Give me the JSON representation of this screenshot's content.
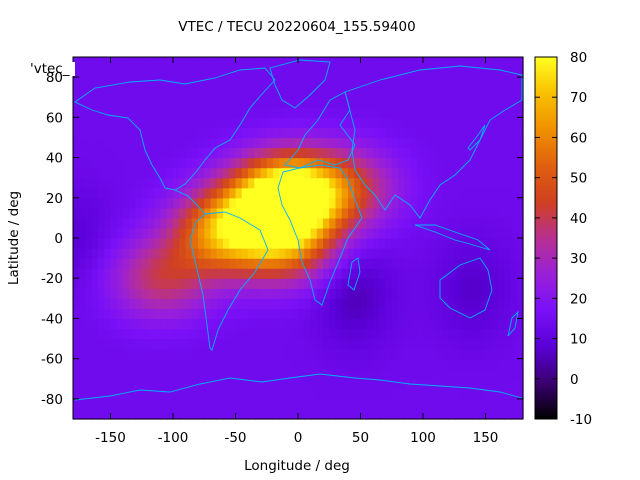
{
  "chart_data": {
    "type": "heatmap",
    "title": "VTEC / TECU 20220604_155.59400",
    "xlabel": "Longitude / deg",
    "ylabel": "Latitude / deg",
    "legend_label": "'vtec_",
    "xlim": [
      -180,
      180
    ],
    "ylim": [
      -90,
      90
    ],
    "xticks": [
      -150,
      -100,
      -50,
      0,
      50,
      100,
      150
    ],
    "yticks": [
      -80,
      -60,
      -40,
      -20,
      0,
      20,
      40,
      60,
      80
    ],
    "colorbar": {
      "range": [
        -10,
        80
      ],
      "ticks": [
        -10,
        0,
        10,
        20,
        30,
        40,
        50,
        60,
        70,
        80
      ],
      "palette": [
        "#000000",
        "#3a0070",
        "#5a00d6",
        "#7a10f8",
        "#9a20d8",
        "#b83090",
        "#d04020",
        "#e06010",
        "#f09000",
        "#f8c000",
        "#ffff20"
      ]
    },
    "background_vtec": 14,
    "features": [
      {
        "name": "africa-equatorial-peak",
        "lon": -15,
        "lat": 20,
        "vtec": 60
      },
      {
        "name": "north-africa-crest",
        "lon": 0,
        "lat": 22,
        "vtec": 54
      },
      {
        "name": "south-equatorial-crest",
        "lon": -10,
        "lat": -2,
        "vtec": 54
      },
      {
        "name": "atlantic-band",
        "lon": -50,
        "lat": 8,
        "vtec": 44
      },
      {
        "name": "south-america-band",
        "lon": -65,
        "lat": 0,
        "vtec": 40
      },
      {
        "name": "east-pacific-patch",
        "lon": -110,
        "lat": -20,
        "vtec": 38
      },
      {
        "name": "middle-east-tail",
        "lon": 40,
        "lat": 25,
        "vtec": 38
      },
      {
        "name": "indian-depletion",
        "lon": 45,
        "lat": -28,
        "vtec": 5
      },
      {
        "name": "australia-depletion",
        "lon": 140,
        "lat": -25,
        "vtec": 7
      },
      {
        "name": "south-pacific-depletion",
        "lon": -180,
        "lat": 0,
        "vtec": 8
      }
    ]
  }
}
